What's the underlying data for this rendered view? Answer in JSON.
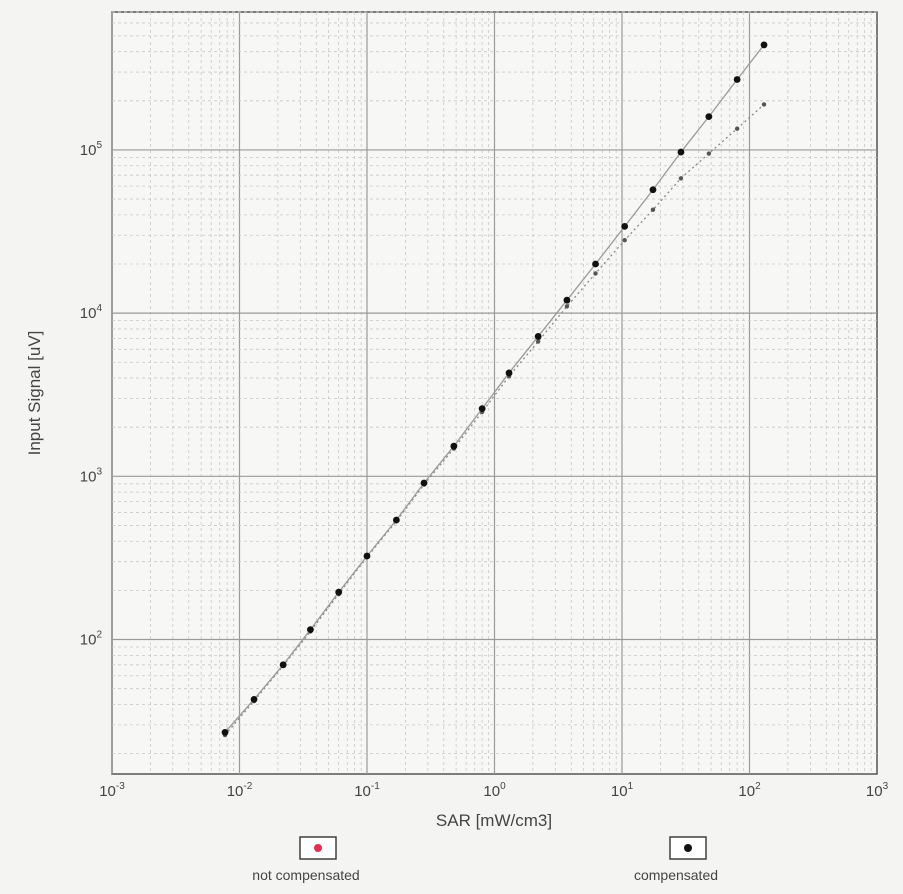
{
  "chart_data": {
    "type": "scatter",
    "xlabel": "SAR [mW/cm3]",
    "ylabel": "Input Signal [uV]",
    "xscale": "log",
    "yscale": "log",
    "xlim": [
      0.001,
      1000
    ],
    "ylim": [
      15,
      700000
    ],
    "grid": true,
    "legend_position": "bottom",
    "x_ticks": [
      {
        "value": 0.001,
        "base": "10",
        "exp": "-3"
      },
      {
        "value": 0.01,
        "base": "10",
        "exp": "-2"
      },
      {
        "value": 0.1,
        "base": "10",
        "exp": "-1"
      },
      {
        "value": 1,
        "base": "10",
        "exp": "0"
      },
      {
        "value": 10,
        "base": "10",
        "exp": "1"
      },
      {
        "value": 100,
        "base": "10",
        "exp": "2"
      },
      {
        "value": 1000,
        "base": "10",
        "exp": "3"
      }
    ],
    "y_ticks": [
      {
        "value": 100,
        "base": "10",
        "exp": "2"
      },
      {
        "value": 1000,
        "base": "10",
        "exp": "3"
      },
      {
        "value": 10000,
        "base": "10",
        "exp": "4"
      },
      {
        "value": 100000,
        "base": "10",
        "exp": "5"
      }
    ],
    "series": [
      {
        "name": "not compensated",
        "marker": "square-with-dot",
        "color": "#e03050",
        "line_style": "dotted",
        "x": [
          0.0077,
          0.013,
          0.022,
          0.036,
          0.06,
          0.1,
          0.17,
          0.28,
          0.48,
          0.8,
          1.3,
          2.2,
          3.7,
          6.2,
          10.5,
          17.5,
          29,
          48,
          80,
          130
        ],
        "y": [
          26,
          42,
          69,
          112,
          190,
          320,
          530,
          890,
          1480,
          2480,
          4100,
          6700,
          11000,
          17500,
          28000,
          43000,
          67000,
          95000,
          135000,
          190000
        ]
      },
      {
        "name": "compensated",
        "marker": "filled-circle",
        "color": "#111111",
        "line_style": "solid",
        "x": [
          0.0077,
          0.013,
          0.022,
          0.036,
          0.06,
          0.1,
          0.17,
          0.28,
          0.48,
          0.8,
          1.3,
          2.2,
          3.7,
          6.2,
          10.5,
          17.5,
          29,
          48,
          80,
          130
        ],
        "y": [
          27,
          43,
          70,
          115,
          195,
          325,
          540,
          910,
          1530,
          2600,
          4300,
          7200,
          12000,
          20000,
          34000,
          57000,
          97000,
          160000,
          270000,
          440000
        ]
      }
    ]
  }
}
